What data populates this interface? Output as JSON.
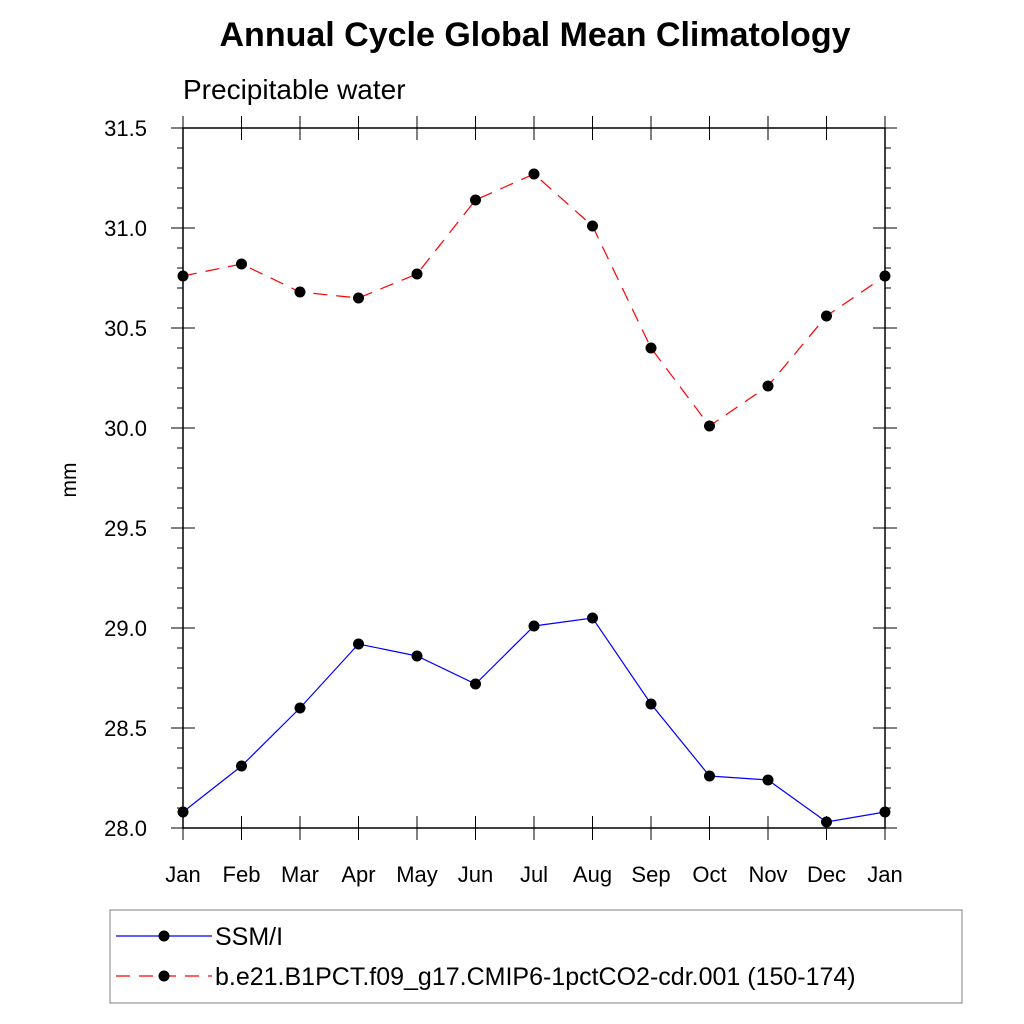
{
  "chart_data": {
    "type": "line",
    "title": "Annual Cycle Global Mean Climatology",
    "subtitle": "Precipitable water",
    "xlabel": "",
    "ylabel": "mm",
    "categories": [
      "Jan",
      "Feb",
      "Mar",
      "Apr",
      "May",
      "Jun",
      "Jul",
      "Aug",
      "Sep",
      "Oct",
      "Nov",
      "Dec",
      "Jan"
    ],
    "ylim": [
      28.0,
      31.5
    ],
    "yticks": [
      "28.0",
      "28.5",
      "29.0",
      "29.5",
      "30.0",
      "30.5",
      "31.0",
      "31.5"
    ],
    "series": [
      {
        "name": "SSM/I",
        "color": "#0000ff",
        "dash": "solid",
        "values": [
          28.08,
          28.31,
          28.6,
          28.92,
          28.86,
          28.72,
          29.01,
          29.05,
          28.62,
          28.26,
          28.24,
          28.03,
          28.08
        ]
      },
      {
        "name": "b.e21.B1PCT.f09_g17.CMIP6-1pctCO2-cdr.001 (150-174)",
        "color": "#ff0000",
        "dash": "dashed",
        "values": [
          30.76,
          30.82,
          30.68,
          30.65,
          30.77,
          31.14,
          31.27,
          31.01,
          30.4,
          30.01,
          30.21,
          30.56,
          30.76
        ]
      }
    ],
    "legend_position": "bottom"
  }
}
